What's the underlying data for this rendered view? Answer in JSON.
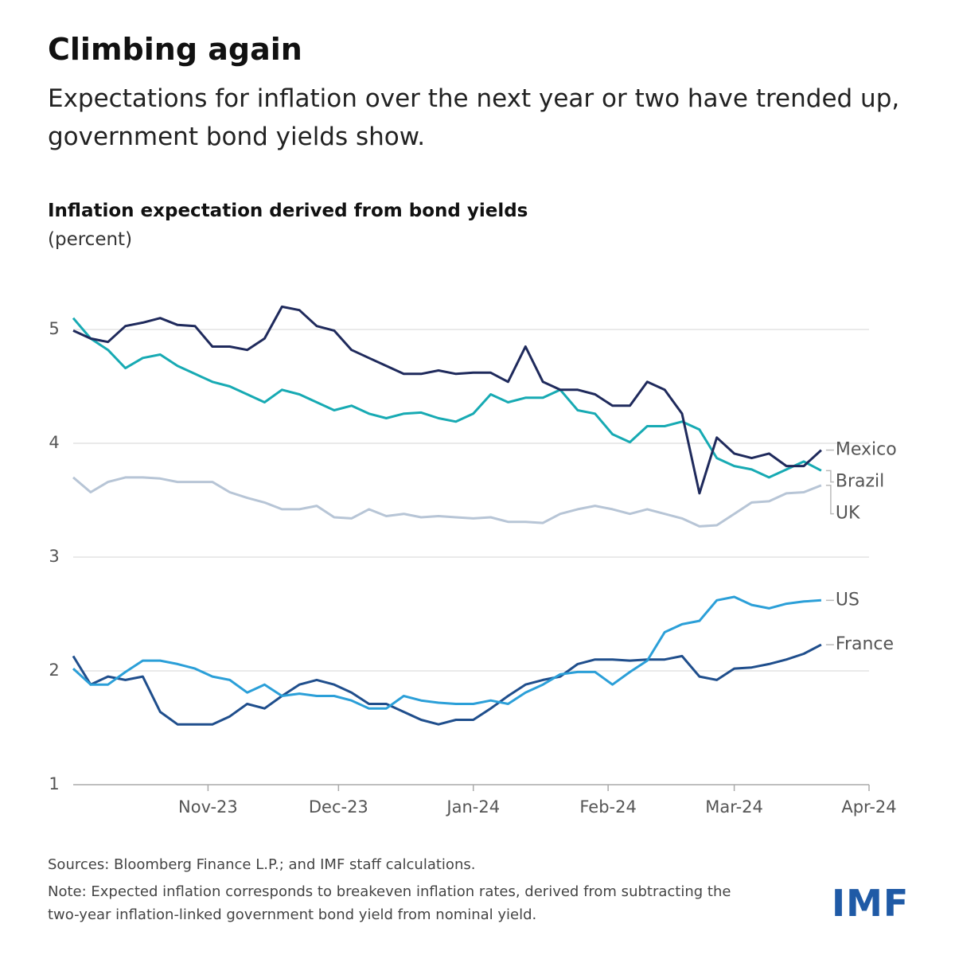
{
  "chart_data": {
    "type": "line",
    "title": "Climbing again",
    "subtitle": "Expectations for inflation over the next year or two have trended up, government bond yields show.",
    "chart_title": "Inflation expectation derived from bond yields",
    "y_label": "(percent)",
    "sources": "Sources: Bloomberg Finance L.P.; and IMF staff calculations.",
    "note": "Note: Expected inflation corresponds to breakeven inflation rates, derived from subtracting the two-year inflation-linked government bond yield from nominal yield.",
    "logo": "IMF",
    "x": [
      0,
      4,
      8,
      12,
      16,
      20,
      24,
      28,
      32,
      36,
      40,
      44,
      48,
      52,
      56,
      60,
      64,
      68,
      72,
      76,
      80,
      84,
      88,
      92,
      96,
      100,
      104,
      108,
      112,
      116,
      120,
      124,
      128,
      132,
      136,
      140,
      144,
      148,
      152,
      156,
      160,
      164,
      168,
      172
    ],
    "xlim": [
      0,
      183
    ],
    "xticks": [
      {
        "value": 31,
        "label": "Nov-23"
      },
      {
        "value": 61,
        "label": "Dec-23"
      },
      {
        "value": 92,
        "label": "Jan-24"
      },
      {
        "value": 123,
        "label": "Feb-24"
      },
      {
        "value": 152,
        "label": "Mar-24"
      },
      {
        "value": 183,
        "label": "Apr-24"
      }
    ],
    "ylim": [
      1,
      5.3
    ],
    "yticks": [
      1,
      2,
      3,
      4,
      5
    ],
    "grid": true,
    "series": [
      {
        "name": "Mexico",
        "color": "#1f2a5c",
        "values": [
          4.99,
          4.92,
          4.89,
          5.03,
          5.06,
          5.1,
          5.04,
          5.03,
          4.85,
          4.85,
          4.82,
          4.92,
          5.2,
          5.17,
          5.03,
          4.99,
          4.82,
          4.75,
          4.68,
          4.61,
          4.61,
          4.64,
          4.61,
          4.62,
          4.62,
          4.54,
          4.85,
          4.54,
          4.47,
          4.47,
          4.43,
          4.33,
          4.33,
          4.54,
          4.47,
          4.26,
          3.56,
          4.05,
          3.91,
          3.87,
          3.91,
          3.8,
          3.8,
          3.94
        ]
      },
      {
        "name": "Brazil",
        "color": "#17aab3",
        "values": [
          5.1,
          4.92,
          4.82,
          4.66,
          4.75,
          4.78,
          4.68,
          4.61,
          4.54,
          4.5,
          4.43,
          4.36,
          4.47,
          4.43,
          4.36,
          4.29,
          4.33,
          4.26,
          4.22,
          4.26,
          4.27,
          4.22,
          4.19,
          4.26,
          4.43,
          4.36,
          4.4,
          4.4,
          4.47,
          4.29,
          4.26,
          4.08,
          4.01,
          4.15,
          4.15,
          4.19,
          4.12,
          3.87,
          3.8,
          3.77,
          3.7,
          3.77,
          3.84,
          3.76
        ]
      },
      {
        "name": "UK",
        "color": "#b7c5d6",
        "values": [
          3.7,
          3.57,
          3.66,
          3.7,
          3.7,
          3.69,
          3.66,
          3.66,
          3.66,
          3.57,
          3.52,
          3.48,
          3.42,
          3.42,
          3.45,
          3.35,
          3.34,
          3.42,
          3.36,
          3.38,
          3.35,
          3.36,
          3.35,
          3.34,
          3.35,
          3.31,
          3.31,
          3.3,
          3.38,
          3.42,
          3.45,
          3.42,
          3.38,
          3.42,
          3.38,
          3.34,
          3.27,
          3.28,
          3.38,
          3.48,
          3.49,
          3.56,
          3.57,
          3.63
        ]
      },
      {
        "name": "US",
        "color": "#2b9fd8",
        "values": [
          2.02,
          1.88,
          1.88,
          1.99,
          2.09,
          2.09,
          2.06,
          2.02,
          1.95,
          1.92,
          1.81,
          1.88,
          1.78,
          1.8,
          1.78,
          1.78,
          1.74,
          1.67,
          1.67,
          1.78,
          1.74,
          1.72,
          1.71,
          1.71,
          1.74,
          1.71,
          1.81,
          1.88,
          1.97,
          1.99,
          1.99,
          1.88,
          1.99,
          2.09,
          2.34,
          2.41,
          2.44,
          2.62,
          2.65,
          2.58,
          2.55,
          2.59,
          2.61,
          2.62
        ]
      },
      {
        "name": "France",
        "color": "#1f4e8c",
        "values": [
          2.13,
          1.88,
          1.95,
          1.92,
          1.95,
          1.64,
          1.53,
          1.53,
          1.53,
          1.6,
          1.71,
          1.67,
          1.78,
          1.88,
          1.92,
          1.88,
          1.81,
          1.71,
          1.71,
          1.64,
          1.57,
          1.53,
          1.57,
          1.57,
          1.67,
          1.78,
          1.88,
          1.92,
          1.95,
          2.06,
          2.1,
          2.1,
          2.09,
          2.1,
          2.1,
          2.13,
          1.95,
          1.92,
          2.02,
          2.03,
          2.06,
          2.1,
          2.15,
          2.23
        ]
      }
    ]
  }
}
